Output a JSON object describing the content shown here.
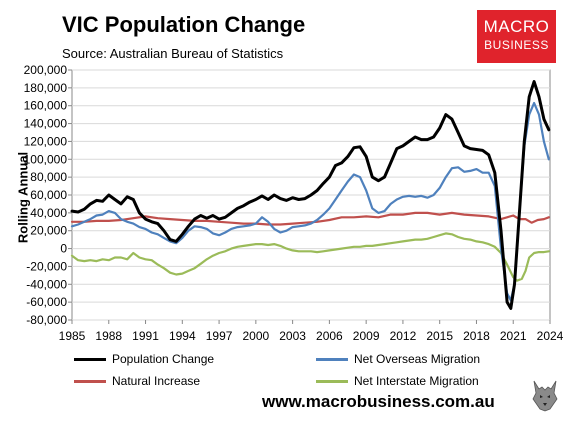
{
  "header": {
    "title": "VIC Population Change",
    "subtitle": "Source: Australian Bureau of Statistics"
  },
  "logo": {
    "line1": "MACRO",
    "line2": "BUSINESS"
  },
  "footer": {
    "website": "www.macrobusiness.com.au"
  },
  "icons": {
    "logo_mark": "wolf-icon"
  },
  "chart_data": {
    "type": "line",
    "title": "VIC Population Change",
    "ylabel": "Rolling Annual",
    "xlim": [
      1985,
      2024
    ],
    "ylim": [
      -80000,
      200000
    ],
    "xticks": [
      "1985",
      "1988",
      "1991",
      "1994",
      "1997",
      "2000",
      "2003",
      "2006",
      "2009",
      "2012",
      "2015",
      "2018",
      "2021",
      "2024"
    ],
    "yticks": [
      "200,000",
      "180,000",
      "160,000",
      "140,000",
      "120,000",
      "100,000",
      "80,000",
      "60,000",
      "40,000",
      "20,000",
      "0",
      "-20,000",
      "-40,000",
      "-60,000",
      "-80,000"
    ],
    "ytick_values": [
      200000,
      180000,
      160000,
      140000,
      120000,
      100000,
      80000,
      60000,
      40000,
      20000,
      0,
      -20000,
      -40000,
      -60000,
      -80000
    ],
    "grid": true,
    "legend_position": "bottom",
    "series": [
      {
        "name": "Population Change",
        "color": "#000000",
        "width": 3,
        "points": [
          [
            1985,
            42000
          ],
          [
            1985.5,
            41000
          ],
          [
            1986,
            44000
          ],
          [
            1986.5,
            50000
          ],
          [
            1987,
            54000
          ],
          [
            1987.5,
            53000
          ],
          [
            1988,
            60000
          ],
          [
            1988.5,
            55000
          ],
          [
            1989,
            50000
          ],
          [
            1989.5,
            58000
          ],
          [
            1990,
            55000
          ],
          [
            1990.5,
            40000
          ],
          [
            1991,
            33000
          ],
          [
            1991.5,
            30000
          ],
          [
            1992,
            28000
          ],
          [
            1992.5,
            20000
          ],
          [
            1993,
            10000
          ],
          [
            1993.5,
            8000
          ],
          [
            1994,
            16000
          ],
          [
            1994.5,
            25000
          ],
          [
            1995,
            33000
          ],
          [
            1995.5,
            37000
          ],
          [
            1996,
            34000
          ],
          [
            1996.5,
            37000
          ],
          [
            1997,
            33000
          ],
          [
            1997.5,
            35000
          ],
          [
            1998,
            40000
          ],
          [
            1998.5,
            45000
          ],
          [
            1999,
            48000
          ],
          [
            1999.5,
            52000
          ],
          [
            2000,
            55000
          ],
          [
            2000.5,
            59000
          ],
          [
            2001,
            55000
          ],
          [
            2001.5,
            60000
          ],
          [
            2002,
            56000
          ],
          [
            2002.5,
            54000
          ],
          [
            2003,
            57000
          ],
          [
            2003.5,
            55000
          ],
          [
            2004,
            56000
          ],
          [
            2004.5,
            60000
          ],
          [
            2005,
            65000
          ],
          [
            2005.5,
            73000
          ],
          [
            2006,
            80000
          ],
          [
            2006.5,
            93000
          ],
          [
            2007,
            96000
          ],
          [
            2007.5,
            103000
          ],
          [
            2008,
            113000
          ],
          [
            2008.5,
            114000
          ],
          [
            2009,
            103000
          ],
          [
            2009.5,
            80000
          ],
          [
            2010,
            76000
          ],
          [
            2010.5,
            80000
          ],
          [
            2011,
            96000
          ],
          [
            2011.5,
            112000
          ],
          [
            2012,
            115000
          ],
          [
            2012.5,
            120000
          ],
          [
            2013,
            125000
          ],
          [
            2013.5,
            122000
          ],
          [
            2014,
            122000
          ],
          [
            2014.5,
            125000
          ],
          [
            2015,
            135000
          ],
          [
            2015.5,
            150000
          ],
          [
            2016,
            145000
          ],
          [
            2016.5,
            130000
          ],
          [
            2017,
            115000
          ],
          [
            2017.5,
            112000
          ],
          [
            2018,
            111000
          ],
          [
            2018.5,
            110000
          ],
          [
            2019,
            105000
          ],
          [
            2019.5,
            85000
          ],
          [
            2020,
            20000
          ],
          [
            2020.5,
            -60000
          ],
          [
            2020.8,
            -67000
          ],
          [
            2021.1,
            -40000
          ],
          [
            2021.5,
            40000
          ],
          [
            2021.9,
            120000
          ],
          [
            2022.3,
            170000
          ],
          [
            2022.7,
            187000
          ],
          [
            2023.1,
            170000
          ],
          [
            2023.5,
            145000
          ],
          [
            2023.9,
            133000
          ]
        ]
      },
      {
        "name": "Net Overseas Migration",
        "color": "#4f81bd",
        "width": 2.2,
        "points": [
          [
            1985,
            25000
          ],
          [
            1985.5,
            27000
          ],
          [
            1986,
            30000
          ],
          [
            1986.5,
            33000
          ],
          [
            1987,
            37000
          ],
          [
            1987.5,
            38000
          ],
          [
            1988,
            42000
          ],
          [
            1988.5,
            40000
          ],
          [
            1989,
            33000
          ],
          [
            1989.5,
            30000
          ],
          [
            1990,
            28000
          ],
          [
            1990.5,
            24000
          ],
          [
            1991,
            22000
          ],
          [
            1991.5,
            18000
          ],
          [
            1992,
            16000
          ],
          [
            1992.5,
            12000
          ],
          [
            1993,
            8000
          ],
          [
            1993.5,
            6000
          ],
          [
            1994,
            12000
          ],
          [
            1994.5,
            20000
          ],
          [
            1995,
            25000
          ],
          [
            1995.5,
            24000
          ],
          [
            1996,
            22000
          ],
          [
            1996.5,
            17000
          ],
          [
            1997,
            15000
          ],
          [
            1997.5,
            18000
          ],
          [
            1998,
            22000
          ],
          [
            1998.5,
            24000
          ],
          [
            1999,
            25000
          ],
          [
            1999.5,
            26000
          ],
          [
            2000,
            28000
          ],
          [
            2000.5,
            35000
          ],
          [
            2001,
            30000
          ],
          [
            2001.5,
            22000
          ],
          [
            2002,
            18000
          ],
          [
            2002.5,
            20000
          ],
          [
            2003,
            24000
          ],
          [
            2003.5,
            25000
          ],
          [
            2004,
            26000
          ],
          [
            2004.5,
            28000
          ],
          [
            2005,
            32000
          ],
          [
            2005.5,
            38000
          ],
          [
            2006,
            45000
          ],
          [
            2006.5,
            55000
          ],
          [
            2007,
            65000
          ],
          [
            2007.5,
            75000
          ],
          [
            2008,
            83000
          ],
          [
            2008.5,
            80000
          ],
          [
            2009,
            65000
          ],
          [
            2009.5,
            45000
          ],
          [
            2010,
            40000
          ],
          [
            2010.5,
            42000
          ],
          [
            2011,
            50000
          ],
          [
            2011.5,
            55000
          ],
          [
            2012,
            58000
          ],
          [
            2012.5,
            59000
          ],
          [
            2013,
            58000
          ],
          [
            2013.5,
            59000
          ],
          [
            2014,
            57000
          ],
          [
            2014.5,
            60000
          ],
          [
            2015,
            68000
          ],
          [
            2015.5,
            80000
          ],
          [
            2016,
            90000
          ],
          [
            2016.5,
            91000
          ],
          [
            2017,
            86000
          ],
          [
            2017.5,
            87000
          ],
          [
            2018,
            89000
          ],
          [
            2018.5,
            85000
          ],
          [
            2019,
            85000
          ],
          [
            2019.5,
            70000
          ],
          [
            2020,
            0
          ],
          [
            2020.5,
            -50000
          ],
          [
            2020.8,
            -58000
          ],
          [
            2021.1,
            -40000
          ],
          [
            2021.5,
            40000
          ],
          [
            2021.9,
            115000
          ],
          [
            2022.3,
            150000
          ],
          [
            2022.7,
            163000
          ],
          [
            2023.1,
            150000
          ],
          [
            2023.5,
            120000
          ],
          [
            2023.9,
            100000
          ]
        ]
      },
      {
        "name": "Natural Increase",
        "color": "#c0504d",
        "width": 2.2,
        "points": [
          [
            1985,
            30000
          ],
          [
            1986,
            30000
          ],
          [
            1987,
            31000
          ],
          [
            1988,
            31000
          ],
          [
            1989,
            32000
          ],
          [
            1990,
            34000
          ],
          [
            1991,
            36000
          ],
          [
            1992,
            34000
          ],
          [
            1993,
            33000
          ],
          [
            1994,
            32000
          ],
          [
            1995,
            31000
          ],
          [
            1996,
            31000
          ],
          [
            1997,
            30000
          ],
          [
            1998,
            29000
          ],
          [
            1999,
            28000
          ],
          [
            2000,
            28000
          ],
          [
            2001,
            27000
          ],
          [
            2002,
            27000
          ],
          [
            2003,
            28000
          ],
          [
            2004,
            29000
          ],
          [
            2005,
            30000
          ],
          [
            2006,
            32000
          ],
          [
            2007,
            35000
          ],
          [
            2008,
            35000
          ],
          [
            2009,
            36000
          ],
          [
            2010,
            35000
          ],
          [
            2011,
            38000
          ],
          [
            2012,
            38000
          ],
          [
            2013,
            40000
          ],
          [
            2014,
            40000
          ],
          [
            2015,
            38000
          ],
          [
            2016,
            40000
          ],
          [
            2017,
            38000
          ],
          [
            2018,
            37000
          ],
          [
            2019,
            36000
          ],
          [
            2020,
            33000
          ],
          [
            2021,
            37000
          ],
          [
            2021.5,
            33000
          ],
          [
            2022,
            33000
          ],
          [
            2022.5,
            29000
          ],
          [
            2023,
            32000
          ],
          [
            2023.5,
            33000
          ],
          [
            2023.9,
            35000
          ]
        ]
      },
      {
        "name": "Net Interstate Migration",
        "color": "#9bbb59",
        "width": 2.2,
        "points": [
          [
            1985,
            -8000
          ],
          [
            1985.5,
            -13000
          ],
          [
            1986,
            -14000
          ],
          [
            1986.5,
            -13000
          ],
          [
            1987,
            -14000
          ],
          [
            1987.5,
            -12000
          ],
          [
            1988,
            -13000
          ],
          [
            1988.5,
            -10000
          ],
          [
            1989,
            -10000
          ],
          [
            1989.5,
            -12000
          ],
          [
            1990,
            -5000
          ],
          [
            1990.5,
            -10000
          ],
          [
            1991,
            -12000
          ],
          [
            1991.5,
            -13000
          ],
          [
            1992,
            -18000
          ],
          [
            1992.5,
            -22000
          ],
          [
            1993,
            -27000
          ],
          [
            1993.5,
            -29000
          ],
          [
            1994,
            -28000
          ],
          [
            1994.5,
            -25000
          ],
          [
            1995,
            -22000
          ],
          [
            1995.5,
            -17000
          ],
          [
            1996,
            -12000
          ],
          [
            1996.5,
            -8000
          ],
          [
            1997,
            -5000
          ],
          [
            1997.5,
            -3000
          ],
          [
            1998,
            0
          ],
          [
            1998.5,
            2000
          ],
          [
            1999,
            3000
          ],
          [
            1999.5,
            4000
          ],
          [
            2000,
            5000
          ],
          [
            2000.5,
            5000
          ],
          [
            2001,
            4000
          ],
          [
            2001.5,
            5000
          ],
          [
            2002,
            3000
          ],
          [
            2002.5,
            0
          ],
          [
            2003,
            -2000
          ],
          [
            2003.5,
            -3000
          ],
          [
            2004,
            -3000
          ],
          [
            2004.5,
            -3000
          ],
          [
            2005,
            -4000
          ],
          [
            2005.5,
            -3000
          ],
          [
            2006,
            -2000
          ],
          [
            2006.5,
            -1000
          ],
          [
            2007,
            0
          ],
          [
            2007.5,
            1000
          ],
          [
            2008,
            2000
          ],
          [
            2008.5,
            2000
          ],
          [
            2009,
            3000
          ],
          [
            2009.5,
            3000
          ],
          [
            2010,
            4000
          ],
          [
            2010.5,
            5000
          ],
          [
            2011,
            6000
          ],
          [
            2011.5,
            7000
          ],
          [
            2012,
            8000
          ],
          [
            2012.5,
            9000
          ],
          [
            2013,
            10000
          ],
          [
            2013.5,
            10000
          ],
          [
            2014,
            11000
          ],
          [
            2014.5,
            13000
          ],
          [
            2015,
            15000
          ],
          [
            2015.5,
            17000
          ],
          [
            2016,
            16000
          ],
          [
            2016.5,
            13000
          ],
          [
            2017,
            11000
          ],
          [
            2017.5,
            10000
          ],
          [
            2018,
            8000
          ],
          [
            2018.5,
            7000
          ],
          [
            2019,
            5000
          ],
          [
            2019.5,
            2000
          ],
          [
            2020,
            -5000
          ],
          [
            2020.5,
            -18000
          ],
          [
            2021,
            -32000
          ],
          [
            2021.3,
            -36000
          ],
          [
            2021.7,
            -34000
          ],
          [
            2022,
            -25000
          ],
          [
            2022.3,
            -10000
          ],
          [
            2022.7,
            -5000
          ],
          [
            2023.1,
            -4000
          ],
          [
            2023.5,
            -4000
          ],
          [
            2023.9,
            -3000
          ]
        ]
      }
    ]
  }
}
